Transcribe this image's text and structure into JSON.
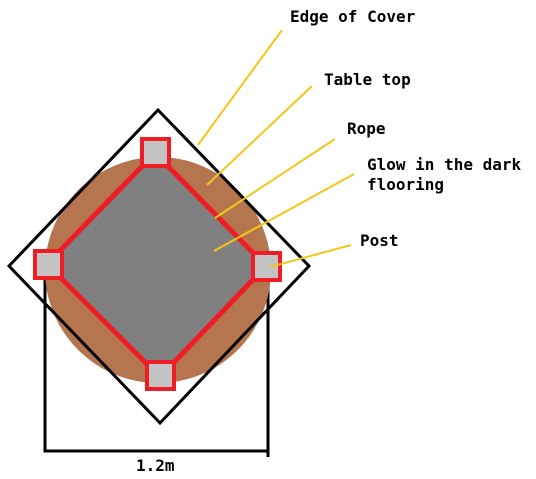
{
  "labels": {
    "edge_of_cover": "Edge of Cover",
    "table_top": "Table top",
    "rope": "Rope",
    "glow_line1": "Glow in the dark",
    "glow_line2": "flooring",
    "post": "Post"
  },
  "dimension": {
    "width_label": "1.2m"
  },
  "colors": {
    "table_top": "#b5764f",
    "flooring": "#808080",
    "rope": "#ee1c24",
    "post": "#c3c3c3",
    "leader": "#f5c518",
    "outline": "#000000"
  },
  "icons": {
    "post": "square-post-icon"
  }
}
